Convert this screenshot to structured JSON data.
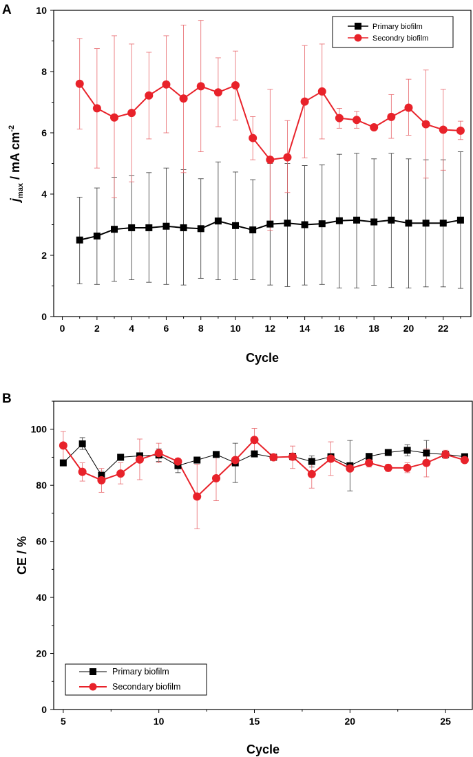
{
  "colors": {
    "primary": "#000000",
    "secondary": "#e8222a",
    "secondary_err": "#e8656a",
    "primary_err": "#333333"
  },
  "chart_data": [
    {
      "panel_label": "A",
      "type": "line",
      "xlabel": "Cycle",
      "ylabel_main": "j",
      "ylabel_sub": "max",
      "ylabel_rest": " / mA cm",
      "ylabel_sup": "-2",
      "xlim": [
        -0.5,
        23.6
      ],
      "ylim": [
        0,
        10
      ],
      "xticks": [
        0,
        2,
        4,
        6,
        8,
        10,
        12,
        14,
        16,
        18,
        20,
        22
      ],
      "yticks": [
        0,
        2,
        4,
        6,
        8,
        10
      ],
      "legend": "top-right",
      "series": [
        {
          "name": "Primary biofilm",
          "marker": "square",
          "x": [
            1,
            2,
            3,
            4,
            5,
            6,
            7,
            8,
            9,
            10,
            11,
            12,
            13,
            14,
            15,
            16,
            17,
            18,
            19,
            20,
            21,
            22,
            23
          ],
          "y": [
            2.5,
            2.63,
            2.85,
            2.9,
            2.9,
            2.95,
            2.9,
            2.87,
            3.12,
            2.97,
            2.83,
            3.02,
            3.05,
            3.0,
            3.03,
            3.13,
            3.15,
            3.09,
            3.15,
            3.05,
            3.05,
            3.05,
            3.15
          ],
          "err_low": [
            1.07,
            1.05,
            1.15,
            1.2,
            1.12,
            1.05,
            1.03,
            1.25,
            1.2,
            1.2,
            1.2,
            1.03,
            0.98,
            1.03,
            1.05,
            0.93,
            0.93,
            1.02,
            0.95,
            0.93,
            0.97,
            0.97,
            0.92
          ],
          "err_high": [
            3.9,
            4.2,
            4.55,
            4.6,
            4.7,
            4.85,
            4.8,
            4.5,
            5.05,
            4.72,
            4.47,
            5.0,
            5.0,
            4.93,
            4.95,
            5.3,
            5.33,
            5.15,
            5.33,
            5.15,
            5.12,
            5.12,
            5.38
          ]
        },
        {
          "name": "Secondry biofilm",
          "marker": "circle",
          "x": [
            1,
            2,
            3,
            4,
            5,
            6,
            7,
            8,
            9,
            10,
            11,
            12,
            13,
            14,
            15,
            16,
            17,
            18,
            19,
            20,
            21,
            22,
            23
          ],
          "y": [
            7.6,
            6.8,
            6.5,
            6.65,
            7.22,
            7.58,
            7.12,
            7.52,
            7.32,
            7.55,
            5.83,
            5.12,
            5.2,
            7.02,
            7.35,
            6.48,
            6.42,
            6.18,
            6.52,
            6.82,
            6.28,
            6.1,
            6.07
          ],
          "err_low": [
            6.12,
            4.85,
            3.88,
            4.4,
            5.8,
            6.0,
            4.7,
            5.38,
            6.2,
            6.42,
            5.12,
            2.82,
            4.05,
            5.18,
            5.8,
            6.15,
            6.15,
            6.18,
            5.82,
            5.92,
            4.52,
            4.78,
            5.78
          ],
          "err_high": [
            9.08,
            8.75,
            9.17,
            8.9,
            8.63,
            9.17,
            9.52,
            9.67,
            8.45,
            8.67,
            6.53,
            7.42,
            6.4,
            8.85,
            8.9,
            6.8,
            6.7,
            6.18,
            7.25,
            7.75,
            8.05,
            7.42,
            6.38
          ]
        }
      ]
    },
    {
      "panel_label": "B",
      "type": "line",
      "xlabel": "Cycle",
      "ylabel": "CE / %",
      "xlim": [
        4.5,
        26.4
      ],
      "ylim": [
        0,
        110
      ],
      "xticks": [
        5,
        10,
        15,
        20,
        25
      ],
      "yticks": [
        0,
        20,
        40,
        60,
        80,
        100
      ],
      "legend": "bottom-left",
      "series": [
        {
          "name": "Primary biofilm",
          "marker": "square",
          "x": [
            5,
            6,
            7,
            8,
            9,
            10,
            11,
            12,
            13,
            14,
            15,
            16,
            17,
            18,
            19,
            20,
            21,
            22,
            23,
            24,
            25,
            26
          ],
          "y": [
            88.0,
            94.8,
            83.5,
            90.0,
            90.5,
            90.8,
            87.0,
            89.0,
            91.0,
            88.0,
            91.2,
            90.0,
            90.3,
            88.5,
            90.2,
            87.0,
            90.3,
            91.7,
            92.5,
            91.5,
            91.0,
            90.2
          ],
          "err_low": [
            88.0,
            92.8,
            82.0,
            89.3,
            89.5,
            88.5,
            84.5,
            88.0,
            90.2,
            81.0,
            90.6,
            89.5,
            89.0,
            86.5,
            89.3,
            78.0,
            89.3,
            91.0,
            90.5,
            87.0,
            90.2,
            89.5
          ],
          "err_high": [
            88.0,
            97.0,
            85.0,
            90.7,
            91.5,
            93.0,
            89.5,
            90.0,
            91.8,
            95.0,
            91.8,
            90.5,
            91.5,
            90.5,
            91.1,
            96.0,
            91.3,
            92.4,
            94.5,
            96.0,
            91.8,
            90.9
          ]
        },
        {
          "name": "Secondary biofilm",
          "marker": "circle",
          "x": [
            5,
            6,
            7,
            8,
            9,
            10,
            11,
            12,
            13,
            14,
            15,
            16,
            17,
            18,
            19,
            20,
            21,
            22,
            23,
            24,
            25,
            26
          ],
          "y": [
            94.2,
            84.8,
            81.8,
            84.2,
            89.2,
            91.5,
            88.5,
            76.0,
            82.5,
            89.0,
            96.2,
            90.0,
            90.2,
            84.0,
            89.5,
            86.0,
            88.0,
            86.2,
            86.2,
            88.0,
            91.0,
            89.0
          ],
          "err_low": [
            89.0,
            81.5,
            77.5,
            80.5,
            82.0,
            88.0,
            87.5,
            64.5,
            74.5,
            88.0,
            92.0,
            90.0,
            86.0,
            79.0,
            83.5,
            85.0,
            86.5,
            85.0,
            84.5,
            83.0,
            89.5,
            88.0
          ],
          "err_high": [
            99.2,
            88.0,
            86.0,
            88.0,
            96.5,
            95.0,
            89.5,
            87.5,
            90.5,
            90.0,
            100.3,
            90.0,
            94.0,
            89.0,
            95.5,
            87.0,
            89.5,
            87.5,
            88.0,
            93.0,
            92.5,
            90.0
          ]
        }
      ]
    }
  ]
}
